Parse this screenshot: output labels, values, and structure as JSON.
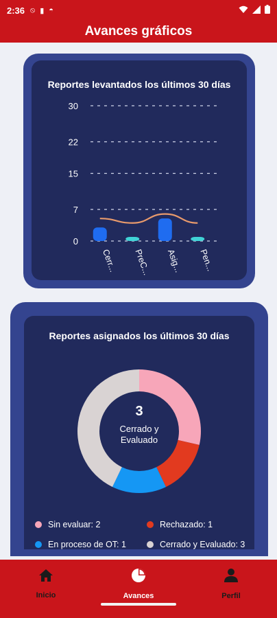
{
  "status_bar": {
    "time": "2:36",
    "icons": [
      "block-icon",
      "sim-icon",
      "face-icon"
    ],
    "right_icons": [
      "wifi-icon",
      "signal-icon",
      "battery-icon"
    ]
  },
  "header": {
    "title": "Avances gráficos"
  },
  "bar_card": {
    "title": "Reportes levantados los últimos 30 días"
  },
  "pie_card": {
    "title": "Reportes asignados los últimos 30 días",
    "center_value": "3",
    "center_label_line1": "Cerrado y",
    "center_label_line2": "Evaluado",
    "legend": [
      {
        "label": "Sin evaluar: 2",
        "color": "#f7a6b9"
      },
      {
        "label": "Rechazado: 1",
        "color": "#e23a1f"
      },
      {
        "label": "En proceso de OT: 1",
        "color": "#1597f4"
      },
      {
        "label": "Cerrado y Evaluado: 3",
        "color": "#d9d3d3"
      }
    ]
  },
  "nav": {
    "items": [
      {
        "label": "Inicio",
        "icon": "home-icon"
      },
      {
        "label": "Avances",
        "icon": "pie-chart-icon"
      },
      {
        "label": "Perfil",
        "icon": "person-icon"
      }
    ],
    "active_color": "#ffffff"
  },
  "colors": {
    "brand_red": "#c9151b",
    "card_outer": "#34448f",
    "card_inner": "#212a5c"
  },
  "chart_data": [
    {
      "type": "bar",
      "title": "Reportes levantados los últimos 30 días",
      "categories": [
        "Cerr...",
        "PreC...",
        "Asig...",
        "Pen..."
      ],
      "values": [
        3,
        0,
        5,
        0
      ],
      "trend": [
        5,
        4,
        6,
        4
      ],
      "yticks": [
        0,
        7,
        15,
        22,
        30
      ],
      "ylim": [
        0,
        30
      ],
      "grid": true,
      "bar_colors": [
        "#1f6cf0",
        "#40d3d6",
        "#1f6cf0",
        "#40d3d6"
      ],
      "trend_color": "#e89a6c"
    },
    {
      "type": "pie",
      "title": "Reportes asignados los últimos 30 días",
      "labels": [
        "Sin evaluar",
        "Rechazado",
        "En proceso de OT",
        "Cerrado y Evaluado"
      ],
      "values": [
        2,
        1,
        1,
        3
      ],
      "colors": [
        "#f7a6b9",
        "#e23a1f",
        "#1597f4",
        "#d9d3d3"
      ]
    }
  ]
}
